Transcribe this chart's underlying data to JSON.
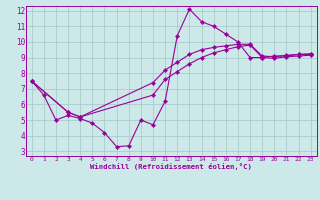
{
  "bg_color": "#cce8e8",
  "grid_color": "#aacccc",
  "line_color": "#990099",
  "xlabel": "Windchill (Refroidissement éolien,°C)",
  "xlim": [
    -0.5,
    23.5
  ],
  "ylim": [
    2.7,
    12.3
  ],
  "yticks": [
    3,
    4,
    5,
    6,
    7,
    8,
    9,
    10,
    11,
    12
  ],
  "xticks": [
    0,
    1,
    2,
    3,
    4,
    5,
    6,
    7,
    8,
    9,
    10,
    11,
    12,
    13,
    14,
    15,
    16,
    17,
    18,
    19,
    20,
    21,
    22,
    23
  ],
  "line1_x": [
    0,
    1,
    2,
    3,
    4,
    5,
    6,
    7,
    8,
    9,
    10,
    11,
    12,
    13,
    14,
    15,
    16,
    17,
    18,
    19,
    20,
    21,
    22,
    23
  ],
  "line1_y": [
    7.5,
    6.6,
    5.0,
    5.3,
    5.1,
    4.8,
    4.2,
    3.3,
    3.35,
    5.0,
    4.7,
    6.2,
    10.4,
    12.1,
    11.3,
    11.0,
    10.5,
    10.0,
    9.0,
    9.0,
    9.1,
    9.1,
    9.2,
    9.2
  ],
  "line2_x": [
    0,
    3,
    4,
    10,
    11,
    12,
    13,
    14,
    15,
    16,
    17,
    18,
    19,
    20,
    21,
    22,
    23
  ],
  "line2_y": [
    7.5,
    5.5,
    5.2,
    7.4,
    8.2,
    8.7,
    9.2,
    9.5,
    9.65,
    9.75,
    9.85,
    9.85,
    9.1,
    9.05,
    9.15,
    9.2,
    9.25
  ],
  "line3_x": [
    0,
    3,
    4,
    10,
    11,
    12,
    13,
    14,
    15,
    16,
    17,
    18,
    19,
    20,
    21,
    22,
    23
  ],
  "line3_y": [
    7.5,
    5.5,
    5.2,
    6.6,
    7.6,
    8.1,
    8.6,
    9.0,
    9.3,
    9.5,
    9.7,
    9.8,
    9.0,
    8.95,
    9.05,
    9.1,
    9.15
  ]
}
